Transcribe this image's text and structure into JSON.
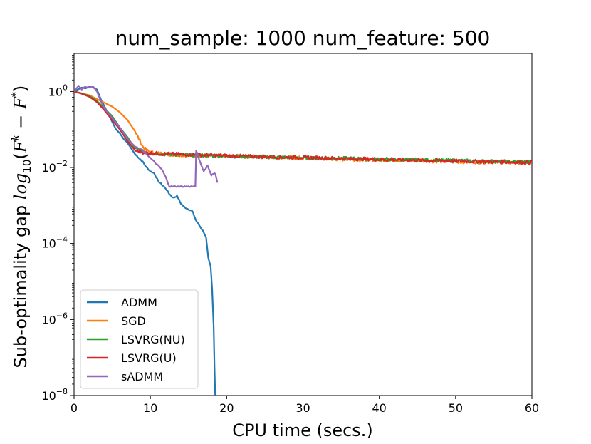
{
  "chart_data": {
    "type": "line",
    "title": "num_sample: 1000 num_feature: 500",
    "xlabel": "CPU time (secs.)",
    "ylabel": {
      "prefix": "Sub-optimality gap ",
      "log": "log",
      "log_sub": "10",
      "open": "(",
      "f1": "F",
      "f1_sup": "k",
      "minus": " − ",
      "f2": "F",
      "f2_sup": "*",
      "close": ")"
    },
    "xlim": [
      0,
      60
    ],
    "ylim_log10": [
      -8,
      1
    ],
    "y_scale": "log",
    "x_ticks": [
      {
        "value": 0,
        "label": "0"
      },
      {
        "value": 10,
        "label": "10"
      },
      {
        "value": 20,
        "label": "20"
      },
      {
        "value": 30,
        "label": "30"
      },
      {
        "value": 40,
        "label": "40"
      },
      {
        "value": 50,
        "label": "50"
      },
      {
        "value": 60,
        "label": "60"
      }
    ],
    "y_ticks": [
      {
        "exp": 0,
        "base": "10",
        "sup": "0"
      },
      {
        "exp": -2,
        "base": "10",
        "sup": "−2"
      },
      {
        "exp": -4,
        "base": "10",
        "sup": "−4"
      },
      {
        "exp": -6,
        "base": "10",
        "sup": "−6"
      },
      {
        "exp": -8,
        "base": "10",
        "sup": "−8"
      }
    ],
    "grid": false,
    "legend_position": "lower-left",
    "series": [
      {
        "name": "ADMM",
        "color": "#1f77b4",
        "x": [
          0,
          0.5,
          1,
          1.5,
          2,
          2.5,
          3,
          3.5,
          4,
          4.5,
          5,
          5.5,
          6,
          6.5,
          7,
          7.5,
          8,
          8.5,
          9,
          9.5,
          10,
          10.5,
          11,
          11.5,
          12,
          12.5,
          13,
          13.5,
          14,
          14.5,
          15,
          15.5,
          16,
          16.5,
          17,
          17.3,
          17.6,
          17.9,
          18.1,
          18.3,
          18.4,
          18.5
        ],
        "y_log10": [
          0,
          0.05,
          0.1,
          0.08,
          0.12,
          0.1,
          0.05,
          -0.2,
          -0.4,
          -0.6,
          -0.8,
          -1.0,
          -1.1,
          -1.25,
          -1.35,
          -1.5,
          -1.65,
          -1.75,
          -1.85,
          -2.0,
          -2.1,
          -2.15,
          -2.35,
          -2.45,
          -2.55,
          -2.7,
          -2.8,
          -2.75,
          -2.95,
          -3.05,
          -3.1,
          -3.15,
          -3.4,
          -3.55,
          -3.7,
          -3.85,
          -4.4,
          -4.6,
          -5.2,
          -6.2,
          -7.2,
          -8.0
        ]
      },
      {
        "name": "SGD",
        "color": "#ff7f0e",
        "x": [
          0,
          1,
          2,
          3,
          4,
          5,
          6,
          7,
          8,
          8.5,
          9,
          9.5,
          10,
          11,
          12,
          15,
          20,
          25,
          30,
          35,
          40,
          45,
          50,
          55,
          60
        ],
        "y_log10": [
          0,
          -0.05,
          -0.1,
          -0.2,
          -0.3,
          -0.4,
          -0.55,
          -0.75,
          -1.05,
          -1.25,
          -1.45,
          -1.55,
          -1.6,
          -1.62,
          -1.65,
          -1.68,
          -1.7,
          -1.72,
          -1.75,
          -1.78,
          -1.8,
          -1.82,
          -1.85,
          -1.86,
          -1.88
        ]
      },
      {
        "name": "LSVRG(NU)",
        "color": "#2ca02c",
        "x": [
          0,
          1,
          2,
          3,
          4,
          5,
          6,
          7,
          8,
          9,
          10,
          12,
          15,
          20,
          25,
          30,
          35,
          40,
          45,
          50,
          55,
          60
        ],
        "y_log10": [
          0,
          -0.05,
          -0.12,
          -0.25,
          -0.45,
          -0.65,
          -0.95,
          -1.2,
          -1.5,
          -1.58,
          -1.62,
          -1.65,
          -1.67,
          -1.7,
          -1.72,
          -1.74,
          -1.76,
          -1.78,
          -1.8,
          -1.82,
          -1.84,
          -1.86
        ]
      },
      {
        "name": "LSVRG(U)",
        "color": "#d62728",
        "x": [
          0,
          1,
          2,
          3,
          4,
          5,
          6,
          7,
          8,
          9,
          10,
          12,
          15,
          20,
          25,
          30,
          35,
          40,
          45,
          50,
          55,
          60
        ],
        "y_log10": [
          0,
          -0.06,
          -0.14,
          -0.28,
          -0.5,
          -0.75,
          -1.0,
          -1.3,
          -1.55,
          -1.6,
          -1.62,
          -1.64,
          -1.66,
          -1.69,
          -1.72,
          -1.74,
          -1.76,
          -1.79,
          -1.81,
          -1.83,
          -1.85,
          -1.87
        ]
      },
      {
        "name": "sADMM",
        "color": "#9467bd",
        "x": [
          0,
          0.6,
          1,
          1.4,
          2,
          2.5,
          3,
          3.5,
          4,
          5,
          6,
          7,
          8,
          9,
          10,
          11,
          11.5,
          12,
          12.5,
          13,
          14,
          15,
          15.9,
          16,
          16.5,
          17,
          17.5,
          18,
          18.5,
          18.8
        ],
        "y_log10": [
          0,
          0.15,
          0.05,
          0.12,
          0.1,
          0.13,
          0.0,
          -0.25,
          -0.45,
          -0.7,
          -0.95,
          -1.25,
          -1.45,
          -1.55,
          -1.75,
          -1.95,
          -2.05,
          -2.25,
          -2.5,
          -2.5,
          -2.5,
          -2.5,
          -2.5,
          -1.55,
          -1.85,
          -2.1,
          -1.95,
          -2.2,
          -2.15,
          -2.4
        ]
      }
    ]
  }
}
